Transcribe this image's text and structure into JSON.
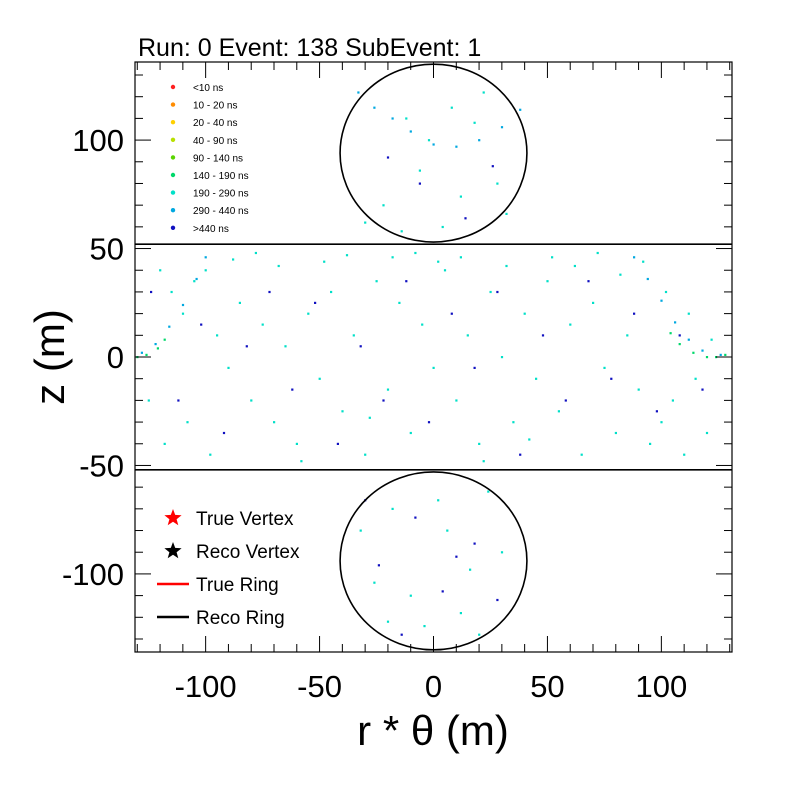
{
  "chart_data": {
    "type": "scatter",
    "title": "Run: 0  Event: 138  SubEvent: 1",
    "xlabel": "r * θ (m)",
    "ylabel": "z (m)",
    "xlim": [
      -131,
      131
    ],
    "ylim": [
      -136,
      136
    ],
    "x_ticks": [
      {
        "value": -100,
        "label": "-100"
      },
      {
        "value": -50,
        "label": "-50"
      },
      {
        "value": 0,
        "label": "0"
      },
      {
        "value": 50,
        "label": "50"
      },
      {
        "value": 100,
        "label": "100"
      }
    ],
    "y_ticks": [
      {
        "value": -100,
        "label": "-100"
      },
      {
        "value": -50,
        "label": "-50"
      },
      {
        "value": 0,
        "label": "0"
      },
      {
        "value": 50,
        "label": "50"
      },
      {
        "value": 100,
        "label": "100"
      }
    ],
    "detector_geometry": {
      "barrel_half_height": 52,
      "cap_radius": 41,
      "top_cap_center": [
        0,
        94
      ],
      "bottom_cap_center": [
        0,
        -94
      ]
    },
    "time_legend": [
      {
        "label": "<10 ns",
        "color": "#ff2020"
      },
      {
        "label": "10 - 20 ns",
        "color": "#ff8c00"
      },
      {
        "label": "20 - 40 ns",
        "color": "#ffd000"
      },
      {
        "label": "40 - 90 ns",
        "color": "#b8e000"
      },
      {
        "label": "90 - 140 ns",
        "color": "#5ad400"
      },
      {
        "label": "140 - 190 ns",
        "color": "#00d86a"
      },
      {
        "label": "190 - 290 ns",
        "color": "#00e0c8"
      },
      {
        "label": "290 - 440 ns",
        "color": "#00a8e0"
      },
      {
        "label": ">440 ns",
        "color": "#1010c0"
      }
    ],
    "legend": [
      {
        "label": "True Vertex",
        "marker": "star",
        "color": "#ff0000"
      },
      {
        "label": "Reco Vertex",
        "marker": "star",
        "color": "#000000"
      },
      {
        "label": "True Ring",
        "marker": "line",
        "color": "#ff0000"
      },
      {
        "label": "Reco Ring",
        "marker": "line",
        "color": "#000000"
      }
    ],
    "series": [
      {
        "name": "190 - 290 ns",
        "color": "#00e0c8",
        "points": [
          [
            -120,
            40
          ],
          [
            -115,
            30
          ],
          [
            -110,
            20
          ],
          [
            -105,
            35
          ],
          [
            -100,
            40
          ],
          [
            -95,
            10
          ],
          [
            -90,
            -5
          ],
          [
            -85,
            25
          ],
          [
            -80,
            -20
          ],
          [
            -75,
            15
          ],
          [
            -70,
            -30
          ],
          [
            -65,
            5
          ],
          [
            -60,
            -40
          ],
          [
            -55,
            20
          ],
          [
            -50,
            -10
          ],
          [
            -45,
            30
          ],
          [
            -40,
            -25
          ],
          [
            -35,
            10
          ],
          [
            -30,
            -45
          ],
          [
            -25,
            35
          ],
          [
            -20,
            -15
          ],
          [
            -15,
            25
          ],
          [
            -10,
            -35
          ],
          [
            -5,
            15
          ],
          [
            0,
            -5
          ],
          [
            5,
            40
          ],
          [
            10,
            -20
          ],
          [
            15,
            10
          ],
          [
            20,
            -40
          ],
          [
            25,
            30
          ],
          [
            30,
            0
          ],
          [
            35,
            -30
          ],
          [
            40,
            20
          ],
          [
            45,
            -10
          ],
          [
            50,
            35
          ],
          [
            55,
            -25
          ],
          [
            60,
            15
          ],
          [
            65,
            -45
          ],
          [
            70,
            25
          ],
          [
            75,
            -5
          ],
          [
            80,
            -35
          ],
          [
            85,
            10
          ],
          [
            90,
            -15
          ],
          [
            95,
            -40
          ],
          [
            100,
            -30
          ],
          [
            105,
            -20
          ],
          [
            110,
            -45
          ],
          [
            115,
            -10
          ],
          [
            120,
            -35
          ],
          [
            -125,
            -20
          ],
          [
            -118,
            -40
          ],
          [
            -108,
            -30
          ],
          [
            -98,
            -45
          ],
          [
            -88,
            45
          ],
          [
            -78,
            48
          ],
          [
            -68,
            42
          ],
          [
            -58,
            -48
          ],
          [
            -48,
            44
          ],
          [
            -38,
            47
          ],
          [
            -28,
            -28
          ],
          [
            -18,
            46
          ],
          [
            -8,
            48
          ],
          [
            2,
            44
          ],
          [
            12,
            46
          ],
          [
            22,
            -48
          ],
          [
            32,
            42
          ],
          [
            42,
            -38
          ],
          [
            52,
            46
          ],
          [
            62,
            42
          ],
          [
            72,
            48
          ],
          [
            82,
            38
          ],
          [
            92,
            44
          ],
          [
            102,
            30
          ],
          [
            112,
            20
          ],
          [
            122,
            8
          ],
          [
            -2,
            100
          ],
          [
            8,
            115
          ],
          [
            -12,
            110
          ],
          [
            18,
            108
          ],
          [
            -22,
            70
          ],
          [
            28,
            80
          ],
          [
            -30,
            62
          ],
          [
            32,
            66
          ],
          [
            12,
            74
          ],
          [
            -6,
            86
          ],
          [
            4,
            60
          ],
          [
            -14,
            58
          ],
          [
            22,
            122
          ],
          [
            -18,
            -70
          ],
          [
            6,
            -80
          ],
          [
            16,
            -98
          ],
          [
            -10,
            -110
          ],
          [
            24,
            -62
          ],
          [
            -26,
            -104
          ],
          [
            30,
            -90
          ],
          [
            -4,
            -124
          ],
          [
            12,
            -118
          ],
          [
            2,
            -66
          ],
          [
            -32,
            -80
          ],
          [
            20,
            -128
          ],
          [
            -20,
            -122
          ]
        ]
      },
      {
        "name": "290 - 440 ns",
        "color": "#00a8e0",
        "points": [
          [
            -33,
            122
          ],
          [
            -26,
            115
          ],
          [
            -18,
            110
          ],
          [
            -10,
            104
          ],
          [
            0,
            98
          ],
          [
            10,
            97
          ],
          [
            20,
            100
          ],
          [
            30,
            106
          ],
          [
            38,
            114
          ],
          [
            -128,
            2
          ],
          [
            -122,
            6
          ],
          [
            -116,
            14
          ],
          [
            -110,
            24
          ],
          [
            -104,
            36
          ],
          [
            -100,
            46
          ],
          [
            88,
            46
          ],
          [
            94,
            36
          ],
          [
            100,
            26
          ],
          [
            106,
            16
          ],
          [
            112,
            8
          ],
          [
            118,
            3
          ],
          [
            126,
            1
          ]
        ]
      },
      {
        "name": "140 - 190 ns",
        "color": "#00d86a",
        "points": [
          [
            -130,
            0
          ],
          [
            -126,
            1
          ],
          [
            -121,
            4
          ],
          [
            -118,
            8
          ],
          [
            114,
            2
          ],
          [
            120,
            0
          ],
          [
            124,
            0
          ],
          [
            128,
            1
          ],
          [
            108,
            6
          ],
          [
            104,
            11
          ]
        ]
      },
      {
        "name": ">440 ns",
        "color": "#1010c0",
        "points": [
          [
            -112,
            -20
          ],
          [
            -102,
            15
          ],
          [
            -92,
            -35
          ],
          [
            -82,
            5
          ],
          [
            -72,
            30
          ],
          [
            -62,
            -15
          ],
          [
            -52,
            25
          ],
          [
            -42,
            -40
          ],
          [
            -32,
            5
          ],
          [
            -22,
            -20
          ],
          [
            -12,
            35
          ],
          [
            -2,
            -30
          ],
          [
            8,
            20
          ],
          [
            18,
            -5
          ],
          [
            28,
            30
          ],
          [
            38,
            -45
          ],
          [
            48,
            10
          ],
          [
            58,
            -20
          ],
          [
            68,
            35
          ],
          [
            78,
            -10
          ],
          [
            88,
            20
          ],
          [
            98,
            -25
          ],
          [
            108,
            10
          ],
          [
            118,
            -15
          ],
          [
            -124,
            30
          ],
          [
            -6,
            80
          ],
          [
            14,
            64
          ],
          [
            -20,
            92
          ],
          [
            26,
            88
          ],
          [
            -8,
            -74
          ],
          [
            18,
            -86
          ],
          [
            -24,
            -96
          ],
          [
            4,
            -108
          ],
          [
            28,
            -112
          ],
          [
            -14,
            -128
          ],
          [
            10,
            -92
          ],
          [
            -30,
            -66
          ]
        ]
      }
    ]
  }
}
